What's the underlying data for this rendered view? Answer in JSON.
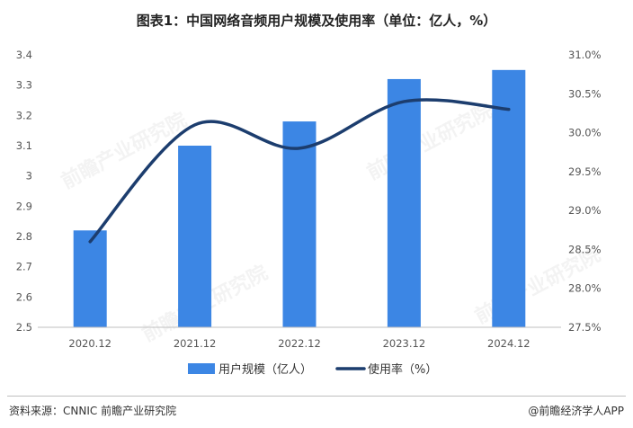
{
  "title": "图表1：中国网络音频用户规模及使用率（单位：亿人，%）",
  "footer": {
    "source": "资料来源：CNNIC  前瞻产业研究院",
    "brand": "@前瞻经济学人APP"
  },
  "watermark": "前瞻产业研究院",
  "colors": {
    "bar": "#3c86e4",
    "line": "#1c3d6e",
    "axis": "#bfbfbf"
  },
  "chart_data": {
    "type": "bar",
    "categories": [
      "2020.12",
      "2021.12",
      "2022.12",
      "2023.12",
      "2024.12"
    ],
    "series": [
      {
        "name": "用户规模（亿人）",
        "type": "bar",
        "axis": "left",
        "values": [
          2.82,
          3.1,
          3.18,
          3.32,
          3.35
        ]
      },
      {
        "name": "使用率（%）",
        "type": "line",
        "axis": "right",
        "smooth": true,
        "values": [
          28.6,
          30.1,
          29.8,
          30.4,
          30.3
        ]
      }
    ],
    "y_left": {
      "min": 2.5,
      "max": 3.4,
      "ticks": [
        "3.4",
        "3.3",
        "3.2",
        "3.1",
        "3",
        "2.9",
        "2.8",
        "2.7",
        "2.6",
        "2.5"
      ]
    },
    "y_right": {
      "min": 27.5,
      "max": 31.0,
      "ticks": [
        "31.0%",
        "30.5%",
        "30.0%",
        "29.5%",
        "29.0%",
        "28.5%",
        "28.0%",
        "27.5%"
      ]
    },
    "legend_position": "bottom",
    "grid": false
  }
}
